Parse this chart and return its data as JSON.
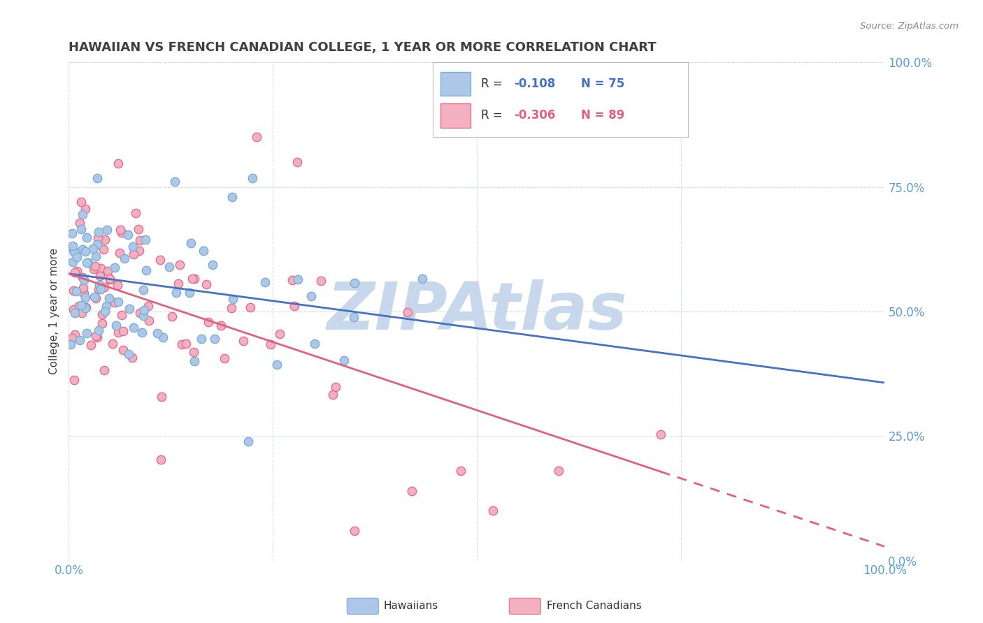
{
  "title": "HAWAIIAN VS FRENCH CANADIAN COLLEGE, 1 YEAR OR MORE CORRELATION CHART",
  "source": "Source: ZipAtlas.com",
  "ylabel_label": "College, 1 year or more",
  "legend_hawaiians": "Hawaiians",
  "legend_french": "French Canadians",
  "R_hawaiians": "-0.108",
  "N_hawaiians": "75",
  "R_french": "-0.306",
  "N_french": "89",
  "hawaiian_color": "#aec6e8",
  "french_color": "#f4afc0",
  "hawaiian_edge": "#7aafd4",
  "french_edge": "#e07090",
  "line_hawaiian_color": "#4472c4",
  "line_french_color": "#e06080",
  "watermark_color": "#c8d8ec",
  "title_color": "#404040",
  "tick_color": "#5b9bd5",
  "grid_color": "#d0dce8",
  "background_color": "#ffffff",
  "hawaiian_seed": 42,
  "french_seed": 77,
  "xlim": [
    0.0,
    1.0
  ],
  "ylim": [
    0.0,
    1.0
  ],
  "xticks": [
    0.0,
    0.25,
    0.5,
    0.75,
    1.0
  ],
  "yticks": [
    0.0,
    0.25,
    0.5,
    0.75,
    1.0
  ],
  "xtick_labels_show": [
    "0.0%",
    "",
    "",
    "",
    "100.0%"
  ],
  "ytick_labels_right": [
    "0.0%",
    "25.0%",
    "50.0%",
    "75.0%",
    "100.0%"
  ]
}
